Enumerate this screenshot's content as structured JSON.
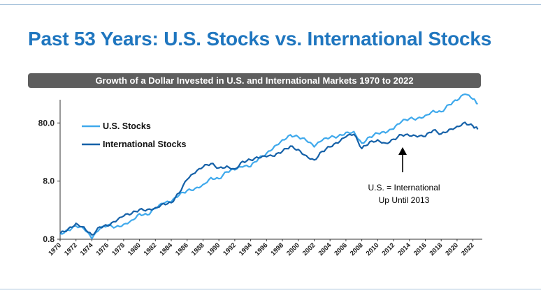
{
  "title": "Past 53 Years: U.S. Stocks vs. International Stocks",
  "subtitle": "Growth of a Dollar Invested in U.S. and International Markets 1970 to 2022",
  "colors": {
    "title": "#1f76bf",
    "us_series": "#3fa9ec",
    "intl_series": "#1561a8",
    "subtitle_bar": "#5e5e5e"
  },
  "annotation": {
    "line1": "U.S. = International",
    "line2": "Up Until 2013",
    "x": 2013
  },
  "chart_data": {
    "type": "line",
    "title": "Past 53 Years: U.S. Stocks vs. International Stocks",
    "subtitle": "Growth of a Dollar Invested in U.S. and International Markets 1970 to 2022",
    "xlabel": "",
    "ylabel": "",
    "y_scale": "log",
    "ylim": [
      0.8,
      190
    ],
    "xlim": [
      1970,
      2023
    ],
    "y_ticks": [
      0.8,
      8.0,
      80.0
    ],
    "y_tick_labels": [
      "0.8",
      "8.0",
      "80.0"
    ],
    "x_ticks": [
      1970,
      1972,
      1974,
      1976,
      1978,
      1980,
      1982,
      1984,
      1986,
      1988,
      1990,
      1992,
      1994,
      1996,
      1998,
      2000,
      2002,
      2004,
      2006,
      2008,
      2010,
      2012,
      2014,
      2016,
      2018,
      2020,
      2022
    ],
    "grid": false,
    "legend_position": "top-left",
    "series": [
      {
        "name": "U.S. Stocks",
        "color": "#3fa9ec",
        "x": [
          1970,
          1971,
          1972,
          1973,
          1974,
          1975,
          1976,
          1977,
          1978,
          1979,
          1980,
          1981,
          1982,
          1983,
          1984,
          1985,
          1986,
          1987,
          1988,
          1989,
          1990,
          1991,
          1992,
          1993,
          1994,
          1995,
          1996,
          1997,
          1998,
          1999,
          2000,
          2001,
          2002,
          2003,
          2004,
          2005,
          2006,
          2007,
          2008,
          2009,
          2010,
          2011,
          2012,
          2013,
          2014,
          2015,
          2016,
          2017,
          2018,
          2019,
          2020,
          2021,
          2022,
          2022.6
        ],
        "values": [
          1.0,
          1.15,
          1.35,
          1.2,
          0.82,
          1.2,
          1.4,
          1.3,
          1.45,
          1.7,
          2.2,
          2.1,
          2.7,
          3.3,
          3.5,
          4.6,
          5.5,
          6.0,
          7.0,
          9.2,
          8.8,
          11.5,
          12.5,
          14.0,
          14.2,
          19.5,
          24.0,
          32.0,
          41.0,
          50.0,
          46.0,
          40.0,
          31.0,
          40.0,
          45.0,
          47.0,
          55.0,
          57.0,
          36.0,
          46.0,
          53.0,
          54.0,
          63.0,
          84.0,
          95.0,
          96.0,
          108.0,
          131.0,
          125.0,
          165.0,
          195.0,
          250.0,
          205.0,
          170.0
        ]
      },
      {
        "name": "International Stocks",
        "color": "#1561a8",
        "x": [
          1970,
          1971,
          1972,
          1973,
          1974,
          1975,
          1976,
          1977,
          1978,
          1979,
          1980,
          1981,
          1982,
          1983,
          1984,
          1985,
          1986,
          1987,
          1988,
          1989,
          1990,
          1991,
          1992,
          1993,
          1994,
          1995,
          1996,
          1997,
          1998,
          1999,
          2000,
          2001,
          2002,
          2003,
          2004,
          2005,
          2006,
          2007,
          2008,
          2009,
          2010,
          2011,
          2012,
          2013,
          2014,
          2015,
          2016,
          2017,
          2018,
          2019,
          2020,
          2021,
          2022,
          2022.6
        ],
        "values": [
          1.0,
          1.2,
          1.5,
          1.3,
          0.95,
          1.3,
          1.35,
          1.6,
          2.0,
          2.2,
          2.6,
          2.6,
          2.8,
          3.3,
          3.4,
          5.0,
          8.5,
          11.0,
          14.0,
          16.0,
          13.5,
          14.5,
          13.0,
          17.5,
          18.5,
          20.0,
          21.0,
          21.5,
          26.0,
          32.0,
          28.0,
          22.0,
          18.5,
          26.0,
          31.0,
          36.0,
          46.0,
          51.0,
          29.0,
          38.0,
          41.0,
          36.0,
          42.0,
          50.0,
          48.0,
          46.0,
          47.0,
          60.0,
          52.0,
          62.0,
          70.0,
          82.0,
          71.0,
          62.0
        ]
      }
    ]
  }
}
